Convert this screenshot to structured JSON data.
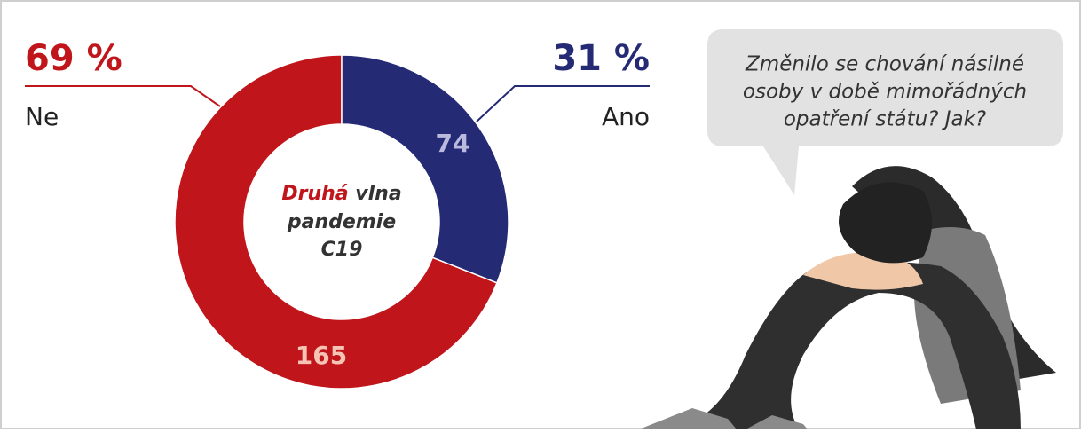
{
  "chart_data": {
    "type": "pie",
    "categories": [
      "Ne",
      "Ano"
    ],
    "values": [
      165,
      74
    ],
    "colors": [
      "#c0161b",
      "#252a75"
    ],
    "label_colors": [
      "#f5c4b4",
      "#b9bade"
    ],
    "shares": [
      {
        "value": 69,
        "label": "69 %"
      },
      {
        "value": 31,
        "label": "31 %"
      }
    ],
    "center_label": [
      "Druhá",
      "vlna",
      "pandemie",
      "C19"
    ]
  },
  "callout": {
    "lines": [
      "Změnilo se chování násilné",
      "osoby v době mimořádných",
      "opatření státu? Jak?"
    ]
  }
}
